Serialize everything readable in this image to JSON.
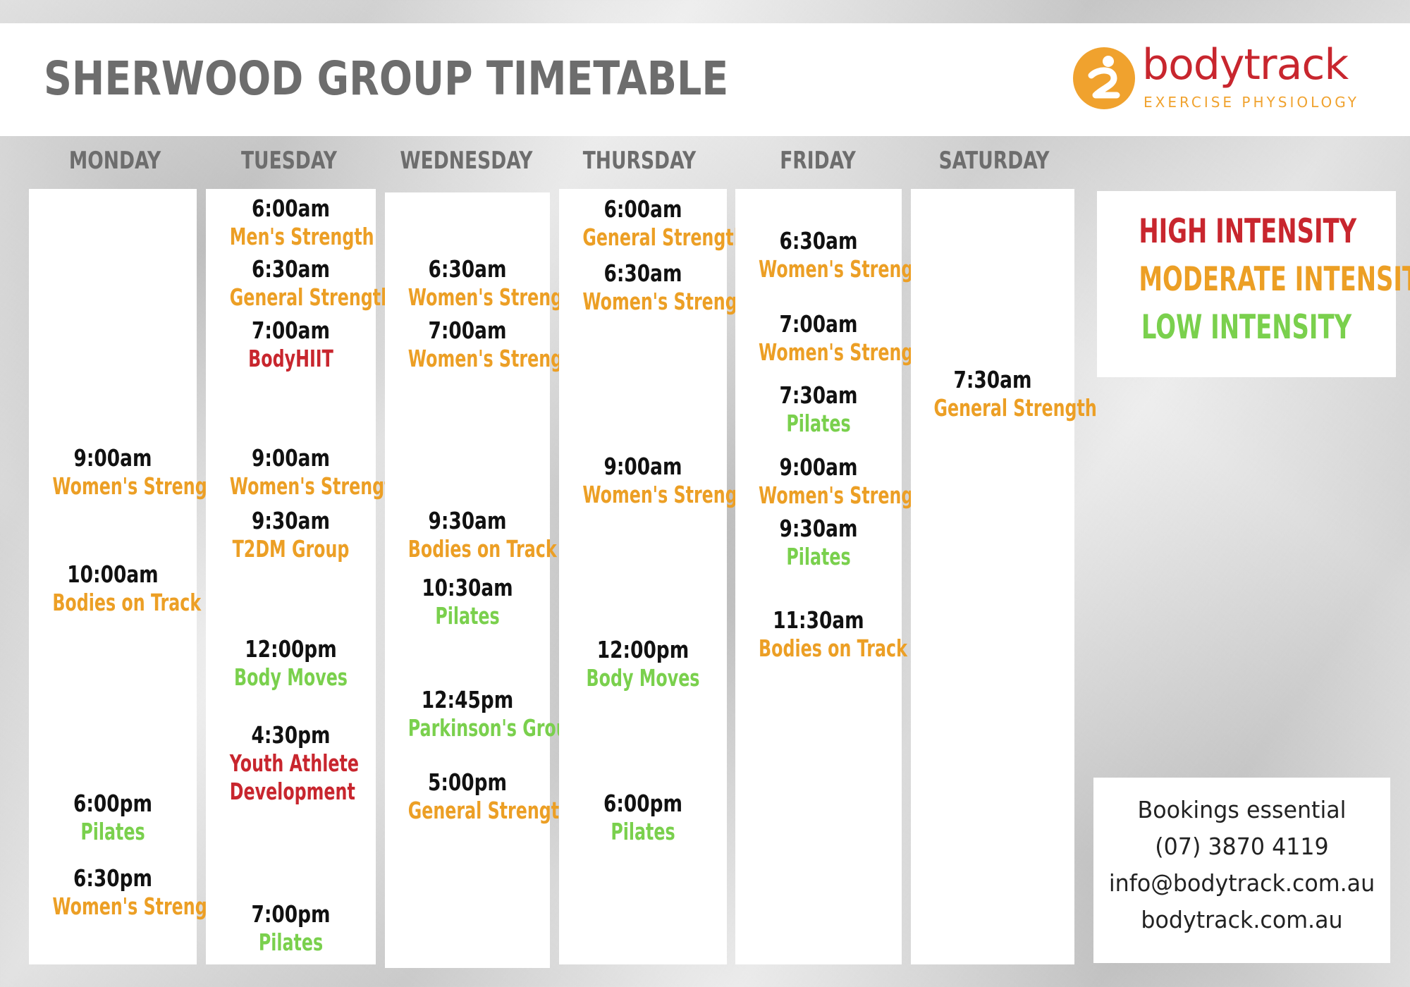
{
  "title": "SHERWOOD GROUP TIMETABLE",
  "logo": {
    "word": "bodytrack",
    "sub": "EXERCISE  PHYSIOLOGY"
  },
  "colors": {
    "high": "#c8262e",
    "moderate": "#ec9f25",
    "low": "#7ad04d",
    "heading": "#6d6d6d"
  },
  "days": [
    {
      "name": "MONDAY",
      "slots": [
        {
          "time": "9:00am",
          "class": "Women's Strength",
          "intensity": "moderate"
        },
        {
          "time": "10:00am",
          "class": "Bodies on Track",
          "intensity": "moderate"
        },
        {
          "time": "6:00pm",
          "class": "Pilates",
          "intensity": "low"
        },
        {
          "time": "6:30pm",
          "class": "Women's Strength",
          "intensity": "moderate"
        }
      ]
    },
    {
      "name": "TUESDAY",
      "slots": [
        {
          "time": "6:00am",
          "class": "Men's Strength",
          "intensity": "moderate"
        },
        {
          "time": "6:30am",
          "class": "General Strength",
          "intensity": "moderate"
        },
        {
          "time": "7:00am",
          "class": "BodyHIIT",
          "intensity": "high"
        },
        {
          "time": "9:00am",
          "class": "Women's Strength",
          "intensity": "moderate"
        },
        {
          "time": "9:30am",
          "class": "T2DM Group",
          "intensity": "moderate"
        },
        {
          "time": "12:00pm",
          "class": "Body Moves",
          "intensity": "low"
        },
        {
          "time": "4:30pm",
          "class": "Youth Athlete",
          "class2": "Development",
          "intensity": "high"
        },
        {
          "time": "7:00pm",
          "class": "Pilates",
          "intensity": "low"
        }
      ]
    },
    {
      "name": "WEDNESDAY",
      "slots": [
        {
          "time": "6:30am",
          "class": "Women's Strength",
          "intensity": "moderate"
        },
        {
          "time": "7:00am",
          "class": "Women's Strength",
          "intensity": "moderate"
        },
        {
          "time": "9:30am",
          "class": "Bodies on Track",
          "intensity": "moderate"
        },
        {
          "time": "10:30am",
          "class": "Pilates",
          "intensity": "low"
        },
        {
          "time": "12:45pm",
          "class": "Parkinson's Group",
          "intensity": "low"
        },
        {
          "time": "5:00pm",
          "class": "General Strength",
          "intensity": "moderate"
        }
      ]
    },
    {
      "name": "THURSDAY",
      "slots": [
        {
          "time": "6:00am",
          "class": "General Strength",
          "intensity": "moderate"
        },
        {
          "time": "6:30am",
          "class": "Women's Strength",
          "intensity": "moderate"
        },
        {
          "time": "9:00am",
          "class": "Women's Strength",
          "intensity": "moderate"
        },
        {
          "time": "12:00pm",
          "class": "Body Moves",
          "intensity": "low"
        },
        {
          "time": "6:00pm",
          "class": "Pilates",
          "intensity": "low"
        }
      ]
    },
    {
      "name": "FRIDAY",
      "slots": [
        {
          "time": "6:30am",
          "class": "Women's Strength",
          "intensity": "moderate"
        },
        {
          "time": "7:00am",
          "class": "Women's Strength",
          "intensity": "moderate"
        },
        {
          "time": "7:30am",
          "class": "Pilates",
          "intensity": "low"
        },
        {
          "time": "9:00am",
          "class": "Women's Strength",
          "intensity": "moderate"
        },
        {
          "time": "9:30am",
          "class": "Pilates",
          "intensity": "low"
        },
        {
          "time": "11:30am",
          "class": "Bodies on Track",
          "intensity": "moderate"
        }
      ]
    },
    {
      "name": "SATURDAY",
      "slots": [
        {
          "time": "7:30am",
          "class": "General Strength",
          "intensity": "moderate"
        }
      ]
    }
  ],
  "legend": {
    "high": "HIGH INTENSITY",
    "moderate": "MODERATE INTENSITY",
    "low": "LOW INTENSITY"
  },
  "contact": {
    "line1": "Bookings essential",
    "phone": "(07) 3870 4119",
    "email": "info@bodytrack.com.au",
    "website": "bodytrack.com.au"
  }
}
